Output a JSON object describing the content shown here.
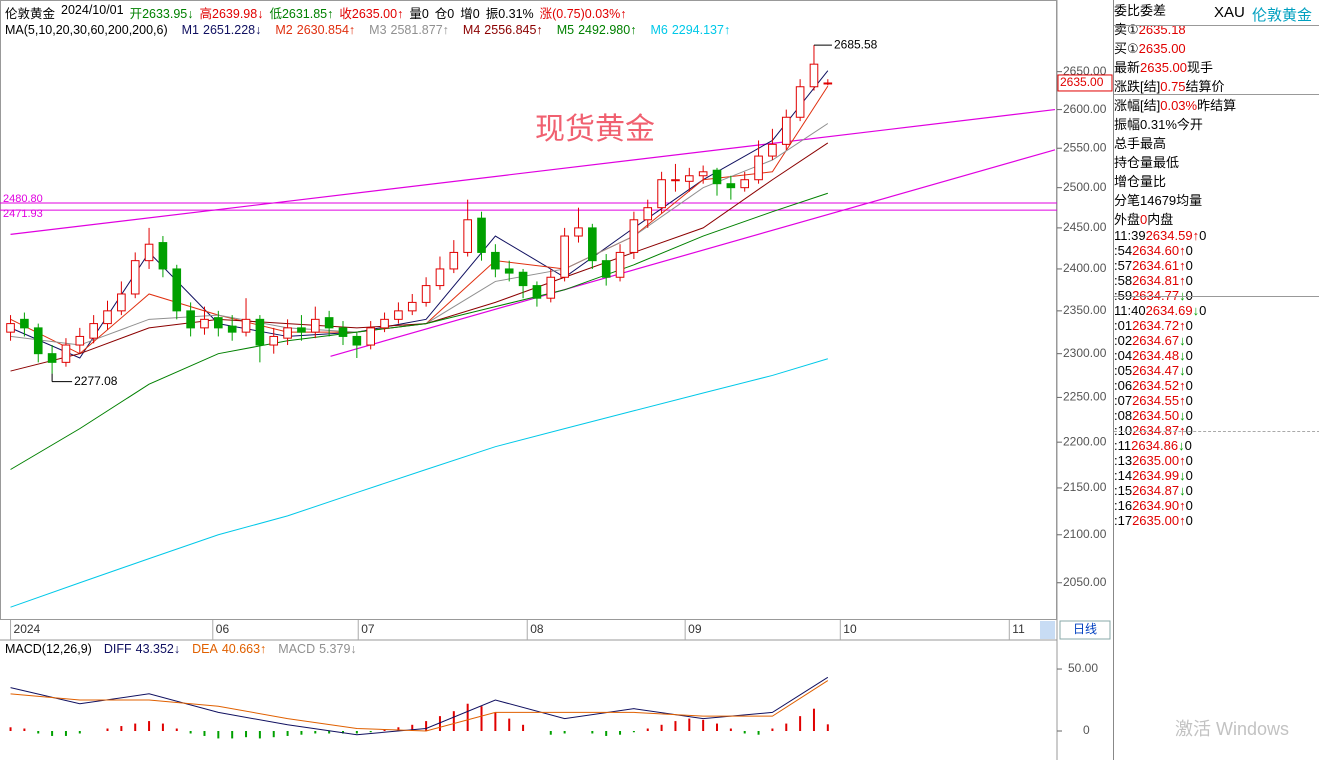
{
  "header": {
    "fields": [
      {
        "text": "伦敦黄金",
        "color": "#000000"
      },
      {
        "text": "2024/10/01",
        "color": "#000000"
      },
      {
        "text": "开2633.95↓",
        "color": "#008000"
      },
      {
        "text": "高2639.98↓",
        "color": "#e00000"
      },
      {
        "text": "低2631.85↑",
        "color": "#008000"
      },
      {
        "text": "收2635.00↑",
        "color": "#e00000"
      },
      {
        "text": "量0",
        "color": "#000000"
      },
      {
        "text": "仓0",
        "color": "#000000"
      },
      {
        "text": "增0",
        "color": "#000000"
      },
      {
        "text": "振0.31%",
        "color": "#000000"
      },
      {
        "text": "涨(0.75)0.03%↑",
        "color": "#e00000"
      }
    ]
  },
  "ma_title": "MA(5,10,20,30,60,200,200,6)",
  "macd_title": "MACD(12,26,9)",
  "watermark": "现货黄金",
  "period_tab": "日线",
  "os_watermark": "激活 Windows",
  "chart_data": [
    {
      "type": "candlestick",
      "log_scale": true,
      "up_color": "#e00000",
      "down_color": "#00a000",
      "xlim": [
        -0.4,
        75.4
      ],
      "ylim": [
        2012,
        2743
      ],
      "yticks": [
        {
          "value": 2050,
          "label": "2050.00"
        },
        {
          "value": 2100,
          "label": "2100.00"
        },
        {
          "value": 2150,
          "label": "2150.00"
        },
        {
          "value": 2200,
          "label": "2200.00"
        },
        {
          "value": 2250,
          "label": "2250.00"
        },
        {
          "value": 2300,
          "label": "2300.00"
        },
        {
          "value": 2350,
          "label": "2350.00"
        },
        {
          "value": 2400,
          "label": "2400.00"
        },
        {
          "value": 2450,
          "label": "2450.00"
        },
        {
          "value": 2500,
          "label": "2500.00"
        },
        {
          "value": 2550,
          "label": "2550.00"
        },
        {
          "value": 2600,
          "label": "2600.00"
        },
        {
          "value": 2650,
          "label": "2650.00"
        }
      ],
      "xticks": [
        {
          "value": 0,
          "label": "2024"
        },
        {
          "value": 14.6,
          "label": "06"
        },
        {
          "value": 25.1,
          "label": "07"
        },
        {
          "value": 37.3,
          "label": "08"
        },
        {
          "value": 48.7,
          "label": "09"
        },
        {
          "value": 59.9,
          "label": "10"
        },
        {
          "value": 72.1,
          "label": "11"
        }
      ],
      "ohlc": [
        [
          2325,
          2345,
          2315,
          2335
        ],
        [
          2340,
          2348,
          2320,
          2330
        ],
        [
          2330,
          2335,
          2290,
          2300
        ],
        [
          2300,
          2310,
          2277.08,
          2290
        ],
        [
          2290,
          2318,
          2285,
          2310
        ],
        [
          2310,
          2330,
          2300,
          2320
        ],
        [
          2318,
          2345,
          2312,
          2335
        ],
        [
          2335,
          2362,
          2328,
          2350
        ],
        [
          2350,
          2385,
          2345,
          2370
        ],
        [
          2370,
          2420,
          2365,
          2410
        ],
        [
          2410,
          2450,
          2400,
          2430
        ],
        [
          2432,
          2440,
          2390,
          2400
        ],
        [
          2400,
          2405,
          2340,
          2350
        ],
        [
          2350,
          2360,
          2320,
          2330
        ],
        [
          2330,
          2355,
          2322,
          2340
        ],
        [
          2342,
          2350,
          2320,
          2330
        ],
        [
          2332,
          2345,
          2315,
          2325
        ],
        [
          2325,
          2365,
          2320,
          2340
        ],
        [
          2340,
          2345,
          2290,
          2310
        ],
        [
          2310,
          2330,
          2300,
          2320
        ],
        [
          2318,
          2340,
          2310,
          2330
        ],
        [
          2330,
          2345,
          2315,
          2325
        ],
        [
          2325,
          2355,
          2318,
          2340
        ],
        [
          2342,
          2350,
          2320,
          2330
        ],
        [
          2330,
          2338,
          2310,
          2320
        ],
        [
          2320,
          2325,
          2295,
          2310
        ],
        [
          2310,
          2338,
          2305,
          2330
        ],
        [
          2330,
          2348,
          2325,
          2340
        ],
        [
          2340,
          2360,
          2335,
          2350
        ],
        [
          2350,
          2370,
          2345,
          2360
        ],
        [
          2360,
          2390,
          2355,
          2380
        ],
        [
          2380,
          2415,
          2375,
          2400
        ],
        [
          2400,
          2435,
          2395,
          2420
        ],
        [
          2420,
          2485,
          2415,
          2460
        ],
        [
          2462,
          2470,
          2410,
          2420
        ],
        [
          2420,
          2430,
          2390,
          2400
        ],
        [
          2400,
          2410,
          2385,
          2395
        ],
        [
          2396,
          2400,
          2365,
          2380
        ],
        [
          2380,
          2385,
          2355,
          2365
        ],
        [
          2365,
          2400,
          2360,
          2390
        ],
        [
          2390,
          2450,
          2385,
          2440
        ],
        [
          2440,
          2475,
          2432,
          2450
        ],
        [
          2450,
          2455,
          2400,
          2410
        ],
        [
          2410,
          2418,
          2380,
          2390
        ],
        [
          2390,
          2430,
          2385,
          2420
        ],
        [
          2420,
          2470,
          2412,
          2460
        ],
        [
          2460,
          2485,
          2450,
          2475
        ],
        [
          2475,
          2520,
          2468,
          2510
        ],
        [
          2510,
          2530,
          2495,
          2510
        ],
        [
          2508,
          2525,
          2495,
          2515
        ],
        [
          2515,
          2528,
          2505,
          2520
        ],
        [
          2522,
          2525,
          2490,
          2505
        ],
        [
          2505,
          2515,
          2485,
          2500
        ],
        [
          2500,
          2520,
          2495,
          2510
        ],
        [
          2510,
          2560,
          2505,
          2540
        ],
        [
          2540,
          2575,
          2535,
          2555
        ],
        [
          2555,
          2600,
          2548,
          2590
        ],
        [
          2590,
          2640,
          2585,
          2630
        ],
        [
          2630,
          2685.58,
          2625,
          2660
        ],
        [
          2633.95,
          2639.98,
          2631.85,
          2635
        ]
      ],
      "max_label": "2685.58",
      "min_label": "2277.08",
      "last_label": "2635.00",
      "ma_x": [
        0,
        5,
        10,
        15,
        20,
        25,
        30,
        35,
        40,
        45,
        50,
        55,
        59
      ],
      "series": [
        {
          "name": "M1",
          "legend_value": "2651.228↓",
          "color": "#101060",
          "values": [
            2330,
            2295,
            2420,
            2335,
            2320,
            2325,
            2340,
            2440,
            2390,
            2450,
            2510,
            2560,
            2651.228
          ]
        },
        {
          "name": "M2",
          "legend_value": "2630.854↑",
          "color": "#e03010",
          "values": [
            2340,
            2300,
            2370,
            2345,
            2325,
            2325,
            2335,
            2410,
            2400,
            2440,
            2510,
            2520,
            2630.854
          ]
        },
        {
          "name": "M3",
          "legend_value": "2581.877↑",
          "color": "#909090",
          "values": [
            2320,
            2310,
            2340,
            2345,
            2330,
            2325,
            2335,
            2385,
            2400,
            2440,
            2500,
            2535,
            2581.877
          ]
        },
        {
          "name": "M4",
          "legend_value": "2556.845↑",
          "color": "#8b0000",
          "values": [
            2280,
            2300,
            2330,
            2340,
            2335,
            2330,
            2335,
            2360,
            2390,
            2420,
            2450,
            2510,
            2556.845
          ]
        },
        {
          "name": "M5",
          "legend_value": "2492.980↑",
          "color": "#008000",
          "values": [
            2170,
            2215,
            2265,
            2300,
            2315,
            2325,
            2335,
            2355,
            2375,
            2405,
            2440,
            2470,
            2492.98
          ]
        },
        {
          "name": "M6",
          "legend_value": "2294.137↑",
          "color": "#00c8e8",
          "values": [
            2025,
            2050,
            2075,
            2100,
            2120,
            2145,
            2170,
            2195,
            2215,
            2235,
            2255,
            2275,
            2294.137
          ]
        }
      ],
      "trend_color": "#e000e0",
      "trendlines": [
        {
          "x": [
            0,
            75.4
          ],
          "y": [
            2442,
            2600
          ]
        },
        {
          "x": [
            23.1,
            75.4
          ],
          "y": [
            2297,
            2548
          ]
        }
      ],
      "levels": [
        {
          "value": 2480.8,
          "label": "2480.80"
        },
        {
          "value": 2471.93,
          "label": "2471.93"
        }
      ]
    },
    {
      "type": "macd",
      "xlim": [
        -0.4,
        75.4
      ],
      "ylim": [
        -23.4,
        71
      ],
      "yticks": [
        {
          "value": 50,
          "label": "50.00"
        },
        0
      ],
      "x": [
        0,
        5,
        10,
        15,
        20,
        25,
        30,
        35,
        40,
        45,
        50,
        55,
        59
      ],
      "series": [
        {
          "name": "DIFF",
          "legend_value": "43.352↓",
          "color": "#101060",
          "values": [
            35,
            22,
            30,
            15,
            5,
            -3,
            2,
            25,
            10,
            18,
            10,
            15,
            43.352
          ]
        },
        {
          "name": "DEA",
          "legend_value": "40.663↑",
          "color": "#e06000",
          "values": [
            30,
            25,
            25,
            20,
            10,
            2,
            0,
            15,
            15,
            15,
            12,
            12,
            40.663
          ]
        }
      ],
      "hist_name": "MACD",
      "hist_legend_value": "5.379↓",
      "hist_color": "#909090",
      "hist": [
        3,
        2,
        -2,
        -4,
        -4,
        -2,
        0,
        2,
        4,
        6,
        8,
        6,
        2,
        -2,
        -4,
        -6,
        -6,
        -5,
        -6,
        -5,
        -4,
        -3,
        -2,
        -2,
        -2,
        -2,
        -1,
        1,
        3,
        5,
        8,
        12,
        16,
        22,
        20,
        15,
        10,
        5,
        0,
        -3,
        -2,
        0,
        -2,
        -4,
        -3,
        -1,
        2,
        5,
        8,
        10,
        9,
        6,
        2,
        -2,
        -3,
        2,
        6,
        12,
        18,
        5.379
      ],
      "up_color": "#e00000",
      "down_color": "#00a000"
    }
  ],
  "quote_panel": {
    "code": "XAU",
    "name": "伦敦黄金",
    "rows": [
      {
        "label": "委比",
        "value": "",
        "label2": "委差",
        "color": "#e00000"
      },
      {
        "label": "卖①",
        "value": "2635.18",
        "label2": "",
        "color": "#e00000"
      },
      {
        "label": "买①",
        "value": "2635.00",
        "label2": "",
        "color": "#e00000"
      },
      {
        "label": "最新",
        "value": "2635.00",
        "label2": "现手",
        "color": "#e00000"
      },
      {
        "label": "涨跌[结]",
        "value": "0.75",
        "label2": "结算价",
        "color": "#e00000"
      },
      {
        "label": "涨幅[结]",
        "value": "0.03%",
        "label2": "昨结算",
        "color": "#e00000"
      },
      {
        "label": "振幅",
        "value": "0.31%",
        "label2": "今开",
        "color": "#000000"
      },
      {
        "label": "总手",
        "value": "",
        "label2": "最高",
        "color": "#000000"
      },
      {
        "label": "持仓量",
        "value": "",
        "label2": "最低",
        "color": "#000000"
      },
      {
        "label": "增仓",
        "value": "",
        "label2": "量比",
        "color": "#000000"
      },
      {
        "label": "分笔",
        "value": "14679",
        "label2": "均量",
        "color": "#000000"
      },
      {
        "label": "外盘",
        "value": "0",
        "label2": "内盘",
        "color": "#e00000"
      }
    ],
    "ticks": [
      {
        "time": "11:39",
        "price": "2634.59",
        "dir": "↑",
        "vol": "0",
        "color": "#e00000"
      },
      {
        "time": ":54",
        "price": "2634.60",
        "dir": "↑",
        "vol": "0",
        "color": "#e00000"
      },
      {
        "time": ":57",
        "price": "2634.61",
        "dir": "↑",
        "vol": "0",
        "color": "#e00000"
      },
      {
        "time": ":58",
        "price": "2634.81",
        "dir": "↑",
        "vol": "0",
        "color": "#e00000"
      },
      {
        "time": ":59",
        "price": "2634.77",
        "dir": "↓",
        "vol": "0",
        "color": "#00a000"
      },
      {
        "time": "11:40",
        "price": "2634.69",
        "dir": "↓",
        "vol": "0",
        "color": "#00a000"
      },
      {
        "time": ":01",
        "price": "2634.72",
        "dir": "↑",
        "vol": "0",
        "color": "#e00000"
      },
      {
        "time": ":02",
        "price": "2634.67",
        "dir": "↓",
        "vol": "0",
        "color": "#00a000"
      },
      {
        "time": ":04",
        "price": "2634.48",
        "dir": "↓",
        "vol": "0",
        "color": "#00a000"
      },
      {
        "time": ":05",
        "price": "2634.47",
        "dir": "↓",
        "vol": "0",
        "color": "#00a000"
      },
      {
        "time": ":06",
        "price": "2634.52",
        "dir": "↑",
        "vol": "0",
        "color": "#e00000"
      },
      {
        "time": ":07",
        "price": "2634.55",
        "dir": "↑",
        "vol": "0",
        "color": "#e00000"
      },
      {
        "time": ":08",
        "price": "2634.50",
        "dir": "↓",
        "vol": "0",
        "color": "#00a000"
      },
      {
        "time": ":10",
        "price": "2634.87",
        "dir": "↑",
        "vol": "0",
        "color": "#e00000"
      },
      {
        "time": ":11",
        "price": "2634.86",
        "dir": "↓",
        "vol": "0",
        "color": "#00a000"
      },
      {
        "time": ":13",
        "price": "2635.00",
        "dir": "↑",
        "vol": "0",
        "color": "#e00000"
      },
      {
        "time": ":14",
        "price": "2634.99",
        "dir": "↓",
        "vol": "0",
        "color": "#00a000"
      },
      {
        "time": ":15",
        "price": "2634.87",
        "dir": "↓",
        "vol": "0",
        "color": "#00a000"
      },
      {
        "time": ":16",
        "price": "2634.90",
        "dir": "↑",
        "vol": "0",
        "color": "#e00000"
      },
      {
        "time": ":17",
        "price": "2635.00",
        "dir": "↑",
        "vol": "0",
        "color": "#e00000"
      }
    ]
  }
}
